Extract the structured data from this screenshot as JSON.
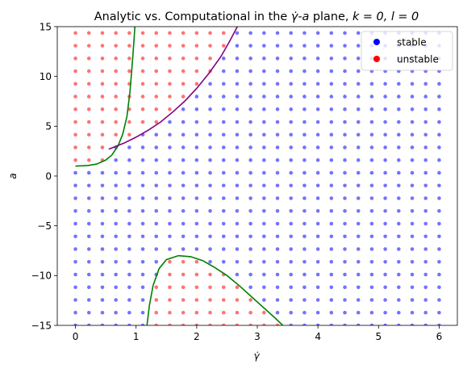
{
  "chart_data": {
    "type": "scatter",
    "title_prefix": "Analytic vs. Computational in the ",
    "title_x": "γ̇",
    "title_dash": "-",
    "title_y": "a",
    "title_suffix": " plane, ",
    "title_params": "k = 0, l = 0",
    "xlabel": "γ̇",
    "ylabel": "a",
    "xlim": [
      -0.3,
      6.3
    ],
    "ylim": [
      -15,
      15
    ],
    "xticks": [
      0,
      1,
      2,
      3,
      4,
      5,
      6
    ],
    "xtick_labels": [
      "0",
      "1",
      "2",
      "3",
      "4",
      "5",
      "6"
    ],
    "yticks": [
      -15,
      -10,
      -5,
      0,
      5,
      10,
      15
    ],
    "ytick_labels": [
      "−15",
      "−10",
      "−5",
      "0",
      "5",
      "10",
      "15"
    ],
    "grid": false,
    "legend_position": "top-right",
    "grid_points": {
      "x_start": 0,
      "x_end": 6,
      "x_step": 0.2222,
      "y_start": -15,
      "y_end": 15,
      "y_step": 1.2766
    },
    "series": [
      {
        "name": "stable",
        "color": "#0000ff"
      },
      {
        "name": "unstable",
        "color": "#ff0000"
      }
    ],
    "curves": [
      {
        "color": "#008000",
        "points": [
          [
            0,
            1.0
          ],
          [
            0.2,
            1.05
          ],
          [
            0.35,
            1.2
          ],
          [
            0.5,
            1.6
          ],
          [
            0.6,
            2.1
          ],
          [
            0.7,
            3.0
          ],
          [
            0.78,
            4.2
          ],
          [
            0.85,
            6.0
          ],
          [
            0.9,
            8.5
          ],
          [
            0.94,
            11.5
          ],
          [
            0.97,
            14.0
          ],
          [
            0.98,
            15.0
          ]
        ]
      },
      {
        "color": "#800080",
        "points": [
          [
            0.55,
            2.7
          ],
          [
            0.8,
            3.3
          ],
          [
            1.0,
            3.9
          ],
          [
            1.2,
            4.6
          ],
          [
            1.4,
            5.4
          ],
          [
            1.6,
            6.4
          ],
          [
            1.8,
            7.5
          ],
          [
            2.0,
            8.8
          ],
          [
            2.2,
            10.3
          ],
          [
            2.4,
            12.0
          ],
          [
            2.55,
            13.6
          ],
          [
            2.67,
            15.0
          ]
        ]
      },
      {
        "color": "#008000",
        "points": [
          [
            1.18,
            -15.0
          ],
          [
            1.22,
            -13.0
          ],
          [
            1.28,
            -11.0
          ],
          [
            1.38,
            -9.3
          ],
          [
            1.5,
            -8.4
          ],
          [
            1.7,
            -8.0
          ],
          [
            1.9,
            -8.1
          ],
          [
            2.1,
            -8.5
          ],
          [
            2.3,
            -9.2
          ],
          [
            2.5,
            -10.0
          ],
          [
            2.7,
            -11.0
          ],
          [
            2.9,
            -12.1
          ],
          [
            3.1,
            -13.2
          ],
          [
            3.3,
            -14.3
          ],
          [
            3.42,
            -15.0
          ]
        ]
      }
    ]
  }
}
